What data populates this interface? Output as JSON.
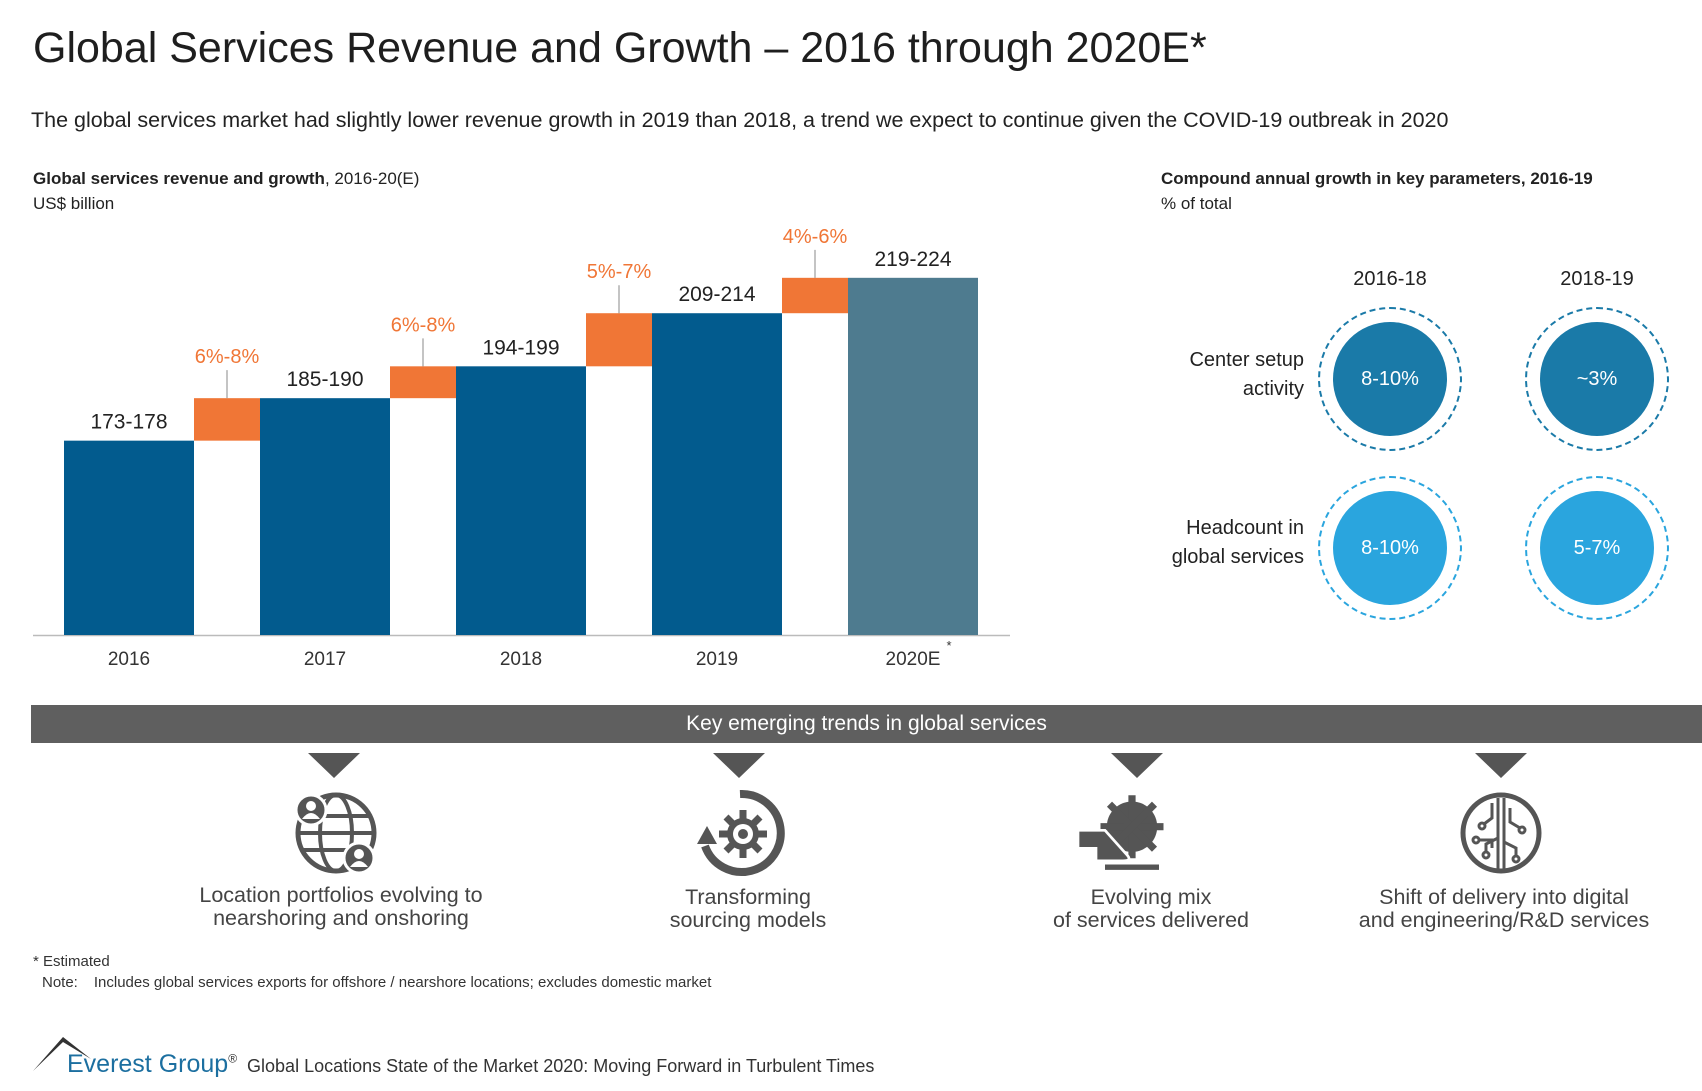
{
  "title": "Global Services Revenue and Growth – 2016 through 2020E*",
  "subtitle": "The global services market had slightly lower revenue growth in 2019 than 2018, a trend we expect to continue given the COVID-19 outbreak in 2020",
  "chart_data": {
    "type": "bar",
    "title_bold": "Global services revenue and growth",
    "title_rest": ", 2016-20(E)",
    "unit": "US$ billion",
    "categories": [
      "2016",
      "2017",
      "2018",
      "2019",
      "2020E"
    ],
    "category_marks": [
      "",
      "",
      "",
      "",
      "*"
    ],
    "values": [
      [
        173,
        178
      ],
      [
        185,
        190
      ],
      [
        194,
        199
      ],
      [
        209,
        214
      ],
      [
        219,
        224
      ]
    ],
    "value_labels": [
      "173-178",
      "185-190",
      "194-199",
      "209-214",
      "219-224"
    ],
    "growth_labels": [
      "6%-8%",
      "6%-8%",
      "5%-7%",
      "4%-6%"
    ],
    "estimated": [
      false,
      false,
      false,
      false,
      true
    ],
    "colors": {
      "actual": "#025b8e",
      "estimated": "#4e7b8f",
      "growth": "#f07636",
      "growth_text": "#f07636"
    }
  },
  "cagr": {
    "title": "Compound annual growth in key parameters, 2016-19",
    "unit": "% of total",
    "columns": [
      "2016-18",
      "2018-19"
    ],
    "rows": [
      {
        "label_line1": "Center setup",
        "label_line2": "activity",
        "values": [
          "8-10%",
          "~3%"
        ],
        "color": "#1a7aa8"
      },
      {
        "label_line1": "Headcount in",
        "label_line2": "global services",
        "values": [
          "8-10%",
          "5-7%"
        ],
        "color": "#2aa5de"
      }
    ]
  },
  "trends": {
    "banner": "Key emerging trends in global services",
    "items": [
      {
        "icon": "globe-people-icon",
        "line1": "Location portfolios evolving to",
        "line2": "nearshoring and onshoring"
      },
      {
        "icon": "gear-cycle-icon",
        "line1": "Transforming",
        "line2": "sourcing models"
      },
      {
        "icon": "hand-gear-icon",
        "line1": "Evolving mix",
        "line2": "of services delivered"
      },
      {
        "icon": "circuit-icon",
        "line1": "Shift of delivery into digital",
        "line2": "and engineering/R&D services"
      }
    ]
  },
  "footnotes": {
    "estimated": "* Estimated",
    "note_label": "Note:",
    "note_text": "Includes global services exports for offshore / nearshore locations; excludes domestic market"
  },
  "footer": {
    "logo": "Everest Group",
    "registered": "®",
    "report": "Global Locations State of the Market 2020: Moving Forward in Turbulent Times"
  }
}
